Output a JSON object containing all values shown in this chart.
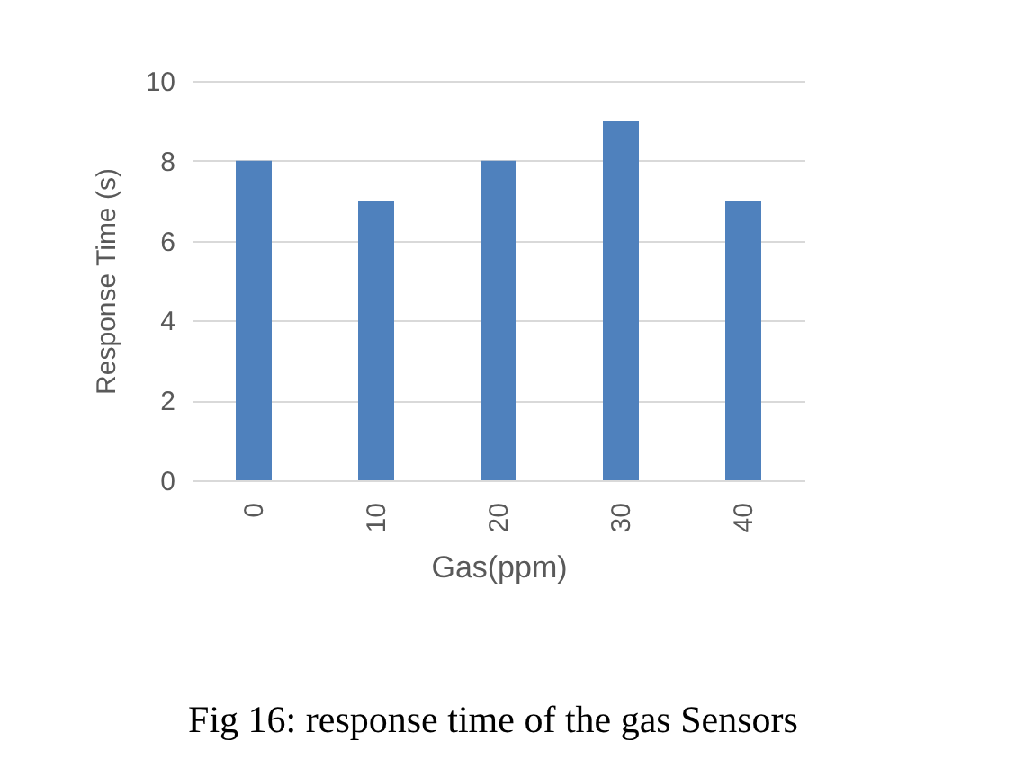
{
  "chart_data": {
    "type": "bar",
    "xlabel": "Gas(ppm)",
    "ylabel": "Response Time (s)",
    "categories": [
      "0",
      "10",
      "20",
      "30",
      "40"
    ],
    "values": [
      8,
      7,
      8,
      9,
      7
    ],
    "color": "#4f81bd",
    "ylim": [
      0,
      10
    ],
    "yticks": [
      0,
      2,
      4,
      6,
      8,
      10
    ],
    "grid": "y",
    "annotations": [
      "Fig 16: response time of the gas Sensors"
    ]
  }
}
